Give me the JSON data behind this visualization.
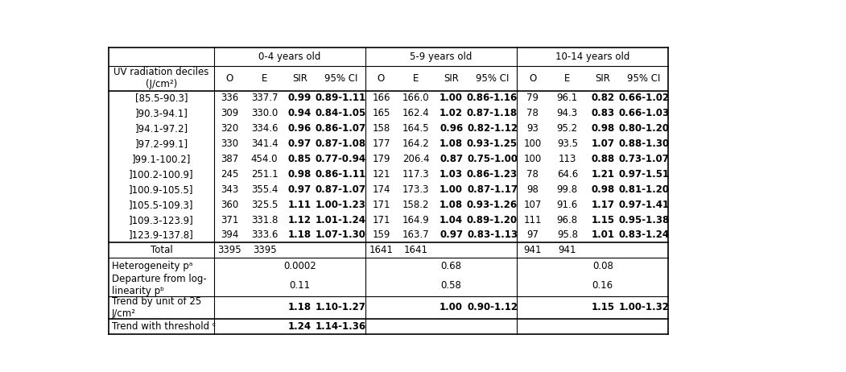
{
  "age_groups": [
    "0-4 years old",
    "5-9 years old",
    "10-14 years old"
  ],
  "col_headers": [
    "O",
    "E",
    "SIR",
    "95% CI"
  ],
  "decile_labels": [
    "[85.5-90.3]",
    "]90.3-94.1]",
    "]94.1-97.2]",
    "]97.2-99.1]",
    "]99.1-100.2]",
    "]100.2-100.9]",
    "]100.9-105.5]",
    "]105.5-109.3]",
    "]109.3-123.9]",
    "]123.9-137.8]"
  ],
  "data_04": [
    [
      "336",
      "337.7",
      "0.99",
      "0.89-1.11"
    ],
    [
      "309",
      "330.0",
      "0.94",
      "0.84-1.05"
    ],
    [
      "320",
      "334.6",
      "0.96",
      "0.86-1.07"
    ],
    [
      "330",
      "341.4",
      "0.97",
      "0.87-1.08"
    ],
    [
      "387",
      "454.0",
      "0.85",
      "0.77-0.94"
    ],
    [
      "245",
      "251.1",
      "0.98",
      "0.86-1.11"
    ],
    [
      "343",
      "355.4",
      "0.97",
      "0.87-1.07"
    ],
    [
      "360",
      "325.5",
      "1.11",
      "1.00-1.23"
    ],
    [
      "371",
      "331.8",
      "1.12",
      "1.01-1.24"
    ],
    [
      "394",
      "333.6",
      "1.18",
      "1.07-1.30"
    ]
  ],
  "data_59": [
    [
      "166",
      "166.0",
      "1.00",
      "0.86-1.16"
    ],
    [
      "165",
      "162.4",
      "1.02",
      "0.87-1.18"
    ],
    [
      "158",
      "164.5",
      "0.96",
      "0.82-1.12"
    ],
    [
      "177",
      "164.2",
      "1.08",
      "0.93-1.25"
    ],
    [
      "179",
      "206.4",
      "0.87",
      "0.75-1.00"
    ],
    [
      "121",
      "117.3",
      "1.03",
      "0.86-1.23"
    ],
    [
      "174",
      "173.3",
      "1.00",
      "0.87-1.17"
    ],
    [
      "171",
      "158.2",
      "1.08",
      "0.93-1.26"
    ],
    [
      "171",
      "164.9",
      "1.04",
      "0.89-1.20"
    ],
    [
      "159",
      "163.7",
      "0.97",
      "0.83-1.13"
    ]
  ],
  "data_1014": [
    [
      "79",
      "96.1",
      "0.82",
      "0.66-1.02"
    ],
    [
      "78",
      "94.3",
      "0.83",
      "0.66-1.03"
    ],
    [
      "93",
      "95.2",
      "0.98",
      "0.80-1.20"
    ],
    [
      "100",
      "93.5",
      "1.07",
      "0.88-1.30"
    ],
    [
      "100",
      "113",
      "0.88",
      "0.73-1.07"
    ],
    [
      "78",
      "64.6",
      "1.21",
      "0.97-1.51"
    ],
    [
      "98",
      "99.8",
      "0.98",
      "0.81-1.20"
    ],
    [
      "107",
      "91.6",
      "1.17",
      "0.97-1.41"
    ],
    [
      "111",
      "96.8",
      "1.15",
      "0.95-1.38"
    ],
    [
      "97",
      "95.8",
      "1.01",
      "0.83-1.24"
    ]
  ],
  "total_04": [
    "3395",
    "3395"
  ],
  "total_59": [
    "1641",
    "1641"
  ],
  "total_1014": [
    "941",
    "941"
  ],
  "het_vals": [
    "0.0002",
    "0.68",
    "0.08"
  ],
  "dep_vals": [
    "0.11",
    "0.58",
    "0.16"
  ],
  "trend_sir": [
    "1.18",
    "1.00",
    "1.15"
  ],
  "trend_ci": [
    "1.10-1.27",
    "0.90-1.12",
    "1.00-1.32"
  ],
  "thresh_sir": "1.24",
  "thresh_ci": "1.14-1.36",
  "font_size": 8.5
}
